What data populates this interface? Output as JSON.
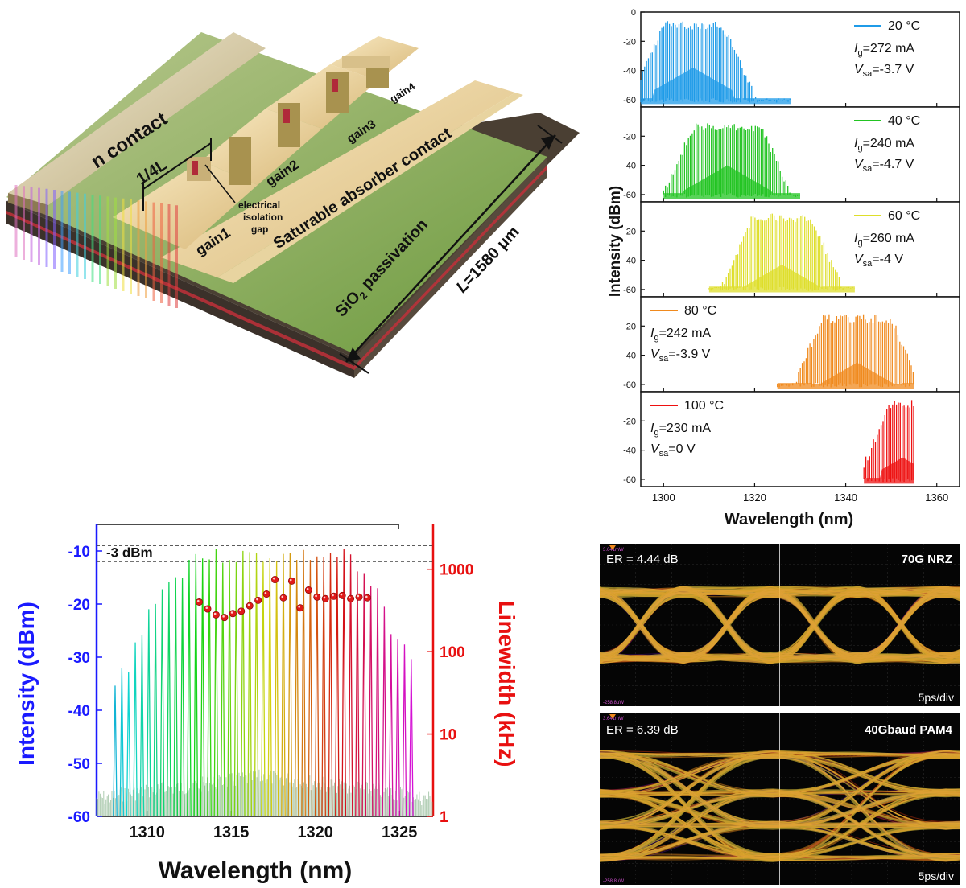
{
  "device": {
    "labels": {
      "n_contact": "n contact",
      "quarter": "1/4L",
      "gain1": "gain1",
      "gain2": "gain2",
      "gain3": "gain3",
      "gain4": "gain4",
      "sa_contact": "Saturable absorber contact",
      "isolation1": "electrical",
      "isolation2": "isolation",
      "isolation3": "gap",
      "sio2_a": "SiO",
      "sio2_sub": "2",
      "sio2_b": " passivation",
      "length_a": "L",
      "length_b": "=1580 μm"
    }
  },
  "chart_data": [
    {
      "type": "line",
      "id": "temperature-spectra",
      "ylabel": "Intensity (dBm)",
      "xlabel": "Wavelength (nm)",
      "xlim": [
        1295,
        1365
      ],
      "xticks": [
        1300,
        1320,
        1340,
        1360
      ],
      "ylim": [
        -65,
        0
      ],
      "yticks": [
        0,
        -20,
        -40,
        -60
      ],
      "subplots": [
        {
          "temp": "20 °C",
          "ig": "=272 mA",
          "vsa": "=-3.7 V",
          "color": "#1f9be8",
          "center": 1306.5,
          "half_width": 6.5,
          "span": [
            1295,
            1328
          ],
          "peak": -6,
          "mid": -38,
          "floor": -62,
          "legend_side": "right"
        },
        {
          "temp": "40 °C",
          "ig": "=240 mA",
          "vsa": "=-4.7 V",
          "color": "#22c422",
          "center": 1314,
          "half_width": 7.5,
          "span": [
            1300,
            1330
          ],
          "peak": -11,
          "mid": -40,
          "floor": -62,
          "legend_side": "right"
        },
        {
          "temp": "60 °C",
          "ig": "=260 mA",
          "vsa": "=-4 V",
          "color": "#dede2a",
          "center": 1326,
          "half_width": 6.5,
          "span": [
            1310,
            1342
          ],
          "peak": -8,
          "mid": -43,
          "floor": -61,
          "legend_side": "right"
        },
        {
          "temp": "80 °C",
          "ig": "=242 mA",
          "vsa": "=-3.9 V",
          "color": "#f08a1e",
          "center": 1342.5,
          "half_width": 7.5,
          "span": [
            1325,
            1355
          ],
          "peak": -12,
          "mid": -45,
          "floor": -62,
          "legend_side": "left"
        },
        {
          "temp": "100 °C",
          "ig": "=230 mA",
          "vsa": "=0 V",
          "color": "#ee1010",
          "center": 1352.5,
          "half_width": 2.5,
          "span": [
            1344,
            1355
          ],
          "peak": -5,
          "mid": -45,
          "floor": -62,
          "legend_side": "left"
        }
      ],
      "ig_label": "I",
      "ig_sub": "g",
      "vsa_label": "V",
      "vsa_sub": "sa"
    },
    {
      "type": "line",
      "id": "comb-spectrum",
      "xlabel": "Wavelength (nm)",
      "ylabel_left": "Intensity (dBm)",
      "ylabel_right": "Linewidth (kHz)",
      "xlim": [
        1307,
        1327
      ],
      "xticks": [
        1310,
        1315,
        1320,
        1325
      ],
      "ylim": [
        -60,
        -5
      ],
      "yticks": [
        -10,
        -20,
        -30,
        -40,
        -50,
        -60
      ],
      "right_ticks": [
        "1000",
        "100",
        "10",
        "1"
      ],
      "right_tick_values": [
        1000,
        100,
        10,
        1
      ],
      "right_ylim_log": [
        1,
        3500
      ],
      "annotation": "-3 dBm",
      "ref_lines_dbm": [
        -9,
        -12
      ],
      "line_spacing_nm": 0.4,
      "line_first_nm": 1308.1,
      "line_last_nm": 1325.7,
      "linewidth_points": {
        "x": [
          1313.1,
          1313.6,
          1314.1,
          1314.6,
          1315.1,
          1315.6,
          1316.1,
          1316.6,
          1317.1,
          1317.6,
          1318.1,
          1318.6,
          1319.1,
          1319.6,
          1320.1,
          1320.6,
          1321.1,
          1321.6,
          1322.1,
          1322.6,
          1323.1
        ],
        "y": [
          400,
          330,
          280,
          260,
          290,
          310,
          360,
          420,
          500,
          750,
          450,
          720,
          340,
          560,
          460,
          440,
          470,
          480,
          440,
          460,
          450
        ]
      }
    }
  ],
  "eyes": [
    {
      "er": "ER = 4.44 dB",
      "format": "70G NRZ",
      "scale": "5ps/div",
      "top_small": "3.641mW",
      "bottom_small": "-258.8uW"
    },
    {
      "er": "ER = 6.39 dB",
      "format": "40Gbaud PAM4",
      "scale": "5ps/div",
      "top_small": "3.641mW",
      "bottom_small": "-258.8uW"
    }
  ]
}
